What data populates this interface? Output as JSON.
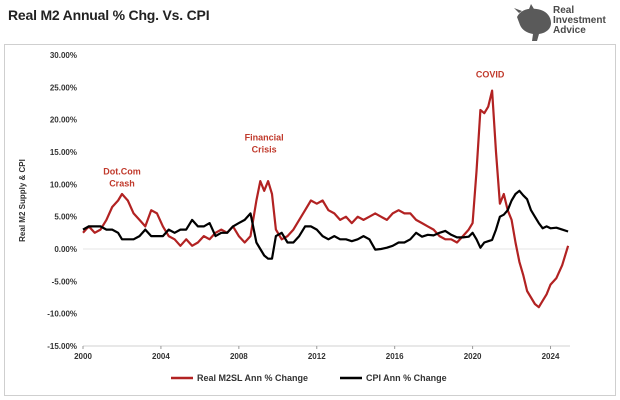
{
  "title": "Real M2 Annual % Chg. Vs. CPI",
  "logo": {
    "line1": "Real",
    "line2": "Investment",
    "line3": "Advice",
    "icon": "bull-logo-icon"
  },
  "colors": {
    "m2": "#b22222",
    "cpi": "#000000",
    "annotation": "#c0392b",
    "axis_text": "#333333"
  },
  "chart_data": {
    "type": "line",
    "title": "Real M2 Annual % Chg. Vs. CPI",
    "xlabel": "",
    "ylabel": "Real M2 Supply & CPI",
    "xlim": [
      2000,
      2025
    ],
    "ylim": [
      -15,
      30
    ],
    "x_ticks": [
      2000,
      2004,
      2008,
      2012,
      2016,
      2020,
      2024
    ],
    "y_ticks": [
      -15,
      -10,
      -5,
      0,
      5,
      10,
      15,
      20,
      25,
      30
    ],
    "y_tick_labels": [
      "-15.00%",
      "-10.00%",
      "-5.00%",
      "0.00%",
      "5.00%",
      "10.00%",
      "15.00%",
      "20.00%",
      "25.00%",
      "30.00%"
    ],
    "legend_position": "bottom",
    "annotations": [
      {
        "text": "Dot.Com\nCrash",
        "x": 2002.0,
        "y": 11.5
      },
      {
        "text": "Financial\nCrisis",
        "x": 2009.3,
        "y": 16.8
      },
      {
        "text": "COVID",
        "x": 2020.9,
        "y": 26.5
      }
    ],
    "series": [
      {
        "name": "Real M2SL Ann % Change",
        "color": "#b22222",
        "points": [
          [
            2000.0,
            2.5
          ],
          [
            2000.3,
            3.5
          ],
          [
            2000.6,
            2.5
          ],
          [
            2000.9,
            3.0
          ],
          [
            2001.2,
            4.5
          ],
          [
            2001.5,
            6.5
          ],
          [
            2001.8,
            7.5
          ],
          [
            2002.0,
            8.5
          ],
          [
            2002.3,
            7.5
          ],
          [
            2002.6,
            5.5
          ],
          [
            2002.9,
            4.5
          ],
          [
            2003.2,
            3.5
          ],
          [
            2003.5,
            6.0
          ],
          [
            2003.8,
            5.5
          ],
          [
            2004.1,
            3.5
          ],
          [
            2004.4,
            2.0
          ],
          [
            2004.7,
            1.5
          ],
          [
            2005.0,
            0.5
          ],
          [
            2005.3,
            1.5
          ],
          [
            2005.6,
            0.5
          ],
          [
            2005.9,
            1.0
          ],
          [
            2006.2,
            2.0
          ],
          [
            2006.5,
            1.5
          ],
          [
            2006.8,
            2.5
          ],
          [
            2007.1,
            3.0
          ],
          [
            2007.4,
            2.5
          ],
          [
            2007.7,
            3.5
          ],
          [
            2008.0,
            2.0
          ],
          [
            2008.3,
            1.0
          ],
          [
            2008.6,
            2.0
          ],
          [
            2008.9,
            7.5
          ],
          [
            2009.1,
            10.5
          ],
          [
            2009.3,
            9.0
          ],
          [
            2009.5,
            10.5
          ],
          [
            2009.7,
            8.5
          ],
          [
            2009.9,
            3.0
          ],
          [
            2010.2,
            1.5
          ],
          [
            2010.5,
            2.0
          ],
          [
            2010.8,
            3.0
          ],
          [
            2011.1,
            4.5
          ],
          [
            2011.4,
            6.0
          ],
          [
            2011.7,
            7.5
          ],
          [
            2012.0,
            7.0
          ],
          [
            2012.3,
            7.5
          ],
          [
            2012.6,
            6.0
          ],
          [
            2012.9,
            5.5
          ],
          [
            2013.2,
            4.5
          ],
          [
            2013.5,
            5.0
          ],
          [
            2013.8,
            4.0
          ],
          [
            2014.1,
            5.0
          ],
          [
            2014.4,
            4.5
          ],
          [
            2014.7,
            5.0
          ],
          [
            2015.0,
            5.5
          ],
          [
            2015.3,
            5.0
          ],
          [
            2015.6,
            4.5
          ],
          [
            2015.9,
            5.5
          ],
          [
            2016.2,
            6.0
          ],
          [
            2016.5,
            5.5
          ],
          [
            2016.8,
            5.5
          ],
          [
            2017.1,
            4.5
          ],
          [
            2017.4,
            4.0
          ],
          [
            2017.7,
            3.5
          ],
          [
            2018.0,
            3.0
          ],
          [
            2018.3,
            2.0
          ],
          [
            2018.6,
            1.5
          ],
          [
            2018.9,
            1.5
          ],
          [
            2019.2,
            1.0
          ],
          [
            2019.5,
            2.0
          ],
          [
            2019.8,
            3.0
          ],
          [
            2020.0,
            4.0
          ],
          [
            2020.2,
            12.0
          ],
          [
            2020.4,
            21.5
          ],
          [
            2020.6,
            21.0
          ],
          [
            2020.8,
            22.0
          ],
          [
            2021.0,
            24.5
          ],
          [
            2021.2,
            15.0
          ],
          [
            2021.4,
            7.0
          ],
          [
            2021.6,
            8.5
          ],
          [
            2021.8,
            6.0
          ],
          [
            2022.0,
            4.5
          ],
          [
            2022.2,
            1.0
          ],
          [
            2022.4,
            -2.0
          ],
          [
            2022.6,
            -4.0
          ],
          [
            2022.8,
            -6.5
          ],
          [
            2023.0,
            -7.5
          ],
          [
            2023.2,
            -8.5
          ],
          [
            2023.4,
            -9.0
          ],
          [
            2023.6,
            -8.0
          ],
          [
            2023.8,
            -7.0
          ],
          [
            2024.0,
            -5.5
          ],
          [
            2024.3,
            -4.5
          ],
          [
            2024.6,
            -2.5
          ],
          [
            2024.9,
            0.5
          ]
        ]
      },
      {
        "name": "CPI Ann % Change",
        "color": "#000000",
        "points": [
          [
            2000.0,
            3.0
          ],
          [
            2000.3,
            3.5
          ],
          [
            2000.6,
            3.5
          ],
          [
            2000.9,
            3.5
          ],
          [
            2001.2,
            3.0
          ],
          [
            2001.5,
            3.0
          ],
          [
            2001.8,
            2.5
          ],
          [
            2002.0,
            1.5
          ],
          [
            2002.3,
            1.5
          ],
          [
            2002.6,
            1.5
          ],
          [
            2002.9,
            2.0
          ],
          [
            2003.2,
            3.0
          ],
          [
            2003.5,
            2.0
          ],
          [
            2003.8,
            2.0
          ],
          [
            2004.1,
            2.0
          ],
          [
            2004.4,
            3.0
          ],
          [
            2004.7,
            2.5
          ],
          [
            2005.0,
            3.0
          ],
          [
            2005.3,
            3.0
          ],
          [
            2005.6,
            4.5
          ],
          [
            2005.9,
            3.5
          ],
          [
            2006.2,
            3.5
          ],
          [
            2006.5,
            4.0
          ],
          [
            2006.8,
            2.0
          ],
          [
            2007.1,
            2.5
          ],
          [
            2007.4,
            2.5
          ],
          [
            2007.7,
            3.5
          ],
          [
            2008.0,
            4.0
          ],
          [
            2008.3,
            4.5
          ],
          [
            2008.6,
            5.5
          ],
          [
            2008.9,
            1.0
          ],
          [
            2009.1,
            0.0
          ],
          [
            2009.3,
            -1.0
          ],
          [
            2009.5,
            -1.5
          ],
          [
            2009.7,
            -1.5
          ],
          [
            2009.9,
            2.0
          ],
          [
            2010.2,
            2.5
          ],
          [
            2010.5,
            1.0
          ],
          [
            2010.8,
            1.0
          ],
          [
            2011.1,
            2.0
          ],
          [
            2011.4,
            3.5
          ],
          [
            2011.7,
            3.5
          ],
          [
            2012.0,
            3.0
          ],
          [
            2012.3,
            2.0
          ],
          [
            2012.6,
            1.5
          ],
          [
            2012.9,
            2.0
          ],
          [
            2013.2,
            1.5
          ],
          [
            2013.5,
            1.5
          ],
          [
            2013.8,
            1.2
          ],
          [
            2014.1,
            1.5
          ],
          [
            2014.4,
            2.0
          ],
          [
            2014.7,
            1.5
          ],
          [
            2015.0,
            -0.1
          ],
          [
            2015.3,
            0.0
          ],
          [
            2015.6,
            0.2
          ],
          [
            2015.9,
            0.5
          ],
          [
            2016.2,
            1.0
          ],
          [
            2016.5,
            1.0
          ],
          [
            2016.8,
            1.5
          ],
          [
            2017.1,
            2.5
          ],
          [
            2017.4,
            1.9
          ],
          [
            2017.7,
            2.2
          ],
          [
            2018.0,
            2.1
          ],
          [
            2018.3,
            2.5
          ],
          [
            2018.6,
            2.8
          ],
          [
            2018.9,
            2.2
          ],
          [
            2019.2,
            1.8
          ],
          [
            2019.5,
            1.8
          ],
          [
            2019.8,
            1.9
          ],
          [
            2020.0,
            2.5
          ],
          [
            2020.2,
            1.5
          ],
          [
            2020.4,
            0.2
          ],
          [
            2020.6,
            1.0
          ],
          [
            2020.8,
            1.2
          ],
          [
            2021.0,
            1.4
          ],
          [
            2021.2,
            3.0
          ],
          [
            2021.4,
            5.0
          ],
          [
            2021.6,
            5.3
          ],
          [
            2021.8,
            6.0
          ],
          [
            2022.0,
            7.5
          ],
          [
            2022.2,
            8.5
          ],
          [
            2022.4,
            9.0
          ],
          [
            2022.6,
            8.3
          ],
          [
            2022.8,
            7.7
          ],
          [
            2023.0,
            6.0
          ],
          [
            2023.2,
            5.0
          ],
          [
            2023.4,
            4.0
          ],
          [
            2023.6,
            3.2
          ],
          [
            2023.8,
            3.5
          ],
          [
            2024.0,
            3.2
          ],
          [
            2024.3,
            3.3
          ],
          [
            2024.6,
            3.0
          ],
          [
            2024.9,
            2.7
          ]
        ]
      }
    ]
  }
}
